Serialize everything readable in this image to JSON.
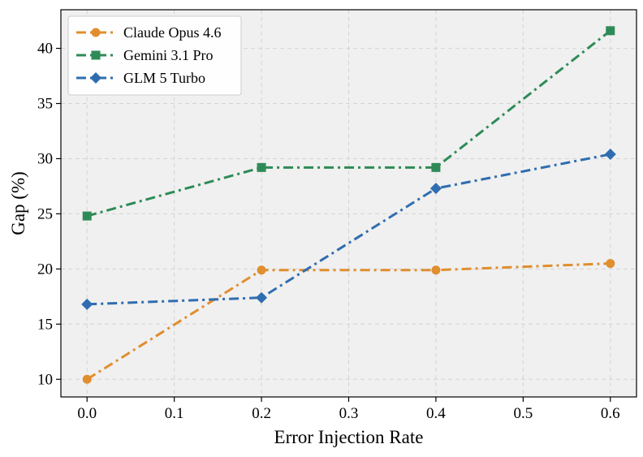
{
  "chart_data": {
    "type": "line",
    "title": "",
    "xlabel": "Error Injection Rate",
    "ylabel": "Gap (%)",
    "xlim": [
      -0.03,
      0.63
    ],
    "ylim": [
      8.4,
      43.5
    ],
    "x_ticks": [
      0.0,
      0.1,
      0.2,
      0.3,
      0.4,
      0.5,
      0.6
    ],
    "x_tick_labels": [
      "0.0",
      "0.1",
      "0.2",
      "0.3",
      "0.4",
      "0.5",
      "0.6"
    ],
    "y_ticks": [
      10,
      15,
      20,
      25,
      30,
      35,
      40
    ],
    "y_tick_labels": [
      "10",
      "15",
      "20",
      "25",
      "30",
      "35",
      "40"
    ],
    "grid": true,
    "legend_position": "top-left",
    "background_color": "#f0f0f0",
    "series": [
      {
        "name": "Claude Opus 4.6",
        "color": "#e08e2e",
        "marker": "circle",
        "line_style": "dash-dot",
        "x": [
          0.0,
          0.2,
          0.4,
          0.6
        ],
        "values": [
          10.0,
          19.9,
          19.9,
          20.5
        ]
      },
      {
        "name": "Gemini 3.1 Pro",
        "color": "#2e8b57",
        "marker": "square",
        "line_style": "dash-dot",
        "x": [
          0.0,
          0.2,
          0.4,
          0.6
        ],
        "values": [
          24.8,
          29.2,
          29.2,
          41.6
        ]
      },
      {
        "name": "GLM 5 Turbo",
        "color": "#2f6db0",
        "marker": "diamond",
        "line_style": "dash-dot",
        "x": [
          0.0,
          0.2,
          0.4,
          0.6
        ],
        "values": [
          16.8,
          17.4,
          27.3,
          30.4
        ]
      }
    ]
  }
}
